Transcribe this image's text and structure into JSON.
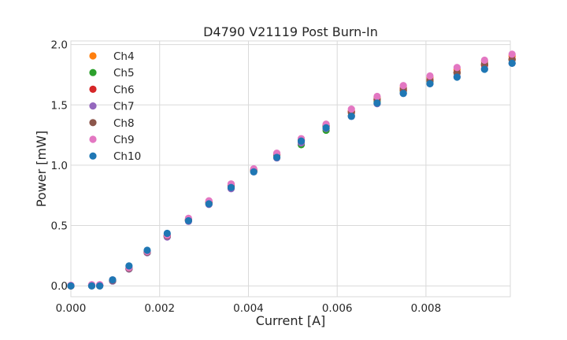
{
  "chart_data": {
    "type": "scatter",
    "title": "D4790 V21119 Post Burn-In",
    "xlabel": "Current [A]",
    "ylabel": "Power [mW]",
    "xlim": [
      0,
      0.0099
    ],
    "ylim": [
      -0.09,
      2.03
    ],
    "grid": true,
    "legend_position": "top-left",
    "x_ticks": [
      0,
      0.002,
      0.004,
      0.006,
      0.008
    ],
    "x_tick_labels": [
      "0.000",
      "0.002",
      "0.004",
      "0.006",
      "0.008"
    ],
    "y_ticks": [
      0,
      0.5,
      1.0,
      1.5,
      2.0
    ],
    "y_tick_labels": [
      "0.0",
      "0.5",
      "1.0",
      "1.5",
      "2.0"
    ],
    "x": [
      0.0,
      0.00047,
      0.00065,
      0.00094,
      0.00131,
      0.00172,
      0.00217,
      0.00265,
      0.00311,
      0.00361,
      0.00412,
      0.00464,
      0.00519,
      0.00575,
      0.00632,
      0.0069,
      0.00749,
      0.00809,
      0.0087,
      0.00932,
      0.00994
    ],
    "series": [
      {
        "name": "Ch4",
        "color": "#ff7f0e",
        "values": [
          0.0,
          0.005,
          0.005,
          0.045,
          0.145,
          0.28,
          0.415,
          0.545,
          0.69,
          0.835,
          0.96,
          1.085,
          1.205,
          1.325,
          1.445,
          1.56,
          1.645,
          1.725,
          1.795,
          1.86,
          1.905
        ]
      },
      {
        "name": "Ch5",
        "color": "#2ca02c",
        "values": [
          0.0,
          0.0,
          0.0,
          0.04,
          0.14,
          0.275,
          0.41,
          0.54,
          0.68,
          0.81,
          0.95,
          1.065,
          1.17,
          1.29,
          1.41,
          1.525,
          1.615,
          1.695,
          1.765,
          1.83,
          1.875
        ]
      },
      {
        "name": "Ch6",
        "color": "#d62728",
        "values": [
          0.0,
          0.005,
          0.005,
          0.045,
          0.145,
          0.28,
          0.415,
          0.55,
          0.695,
          0.835,
          0.965,
          1.09,
          1.21,
          1.33,
          1.445,
          1.545,
          1.625,
          1.705,
          1.77,
          1.83,
          1.88
        ]
      },
      {
        "name": "Ch7",
        "color": "#9467bd",
        "values": [
          0.0,
          0.0,
          0.0,
          0.04,
          0.14,
          0.275,
          0.405,
          0.535,
          0.675,
          0.805,
          0.945,
          1.06,
          1.185,
          1.305,
          1.405,
          1.51,
          1.595,
          1.675,
          1.735,
          1.8,
          1.845
        ]
      },
      {
        "name": "Ch8",
        "color": "#8c564b",
        "values": [
          0.0,
          0.005,
          0.005,
          0.045,
          0.145,
          0.28,
          0.415,
          0.545,
          0.69,
          0.825,
          0.955,
          1.085,
          1.205,
          1.325,
          1.435,
          1.545,
          1.635,
          1.705,
          1.765,
          1.84,
          1.875
        ]
      },
      {
        "name": "Ch9",
        "color": "#e377c2",
        "values": [
          0.005,
          0.01,
          0.01,
          0.05,
          0.15,
          0.285,
          0.42,
          0.56,
          0.705,
          0.845,
          0.97,
          1.1,
          1.22,
          1.34,
          1.465,
          1.57,
          1.66,
          1.74,
          1.81,
          1.87,
          1.92
        ]
      },
      {
        "name": "Ch10",
        "color": "#1f77b4",
        "values": [
          0.0,
          0.0,
          0.0,
          0.05,
          0.165,
          0.295,
          0.435,
          0.54,
          0.68,
          0.815,
          0.945,
          1.065,
          1.2,
          1.31,
          1.405,
          1.515,
          1.595,
          1.675,
          1.73,
          1.795,
          1.845
        ]
      }
    ]
  }
}
